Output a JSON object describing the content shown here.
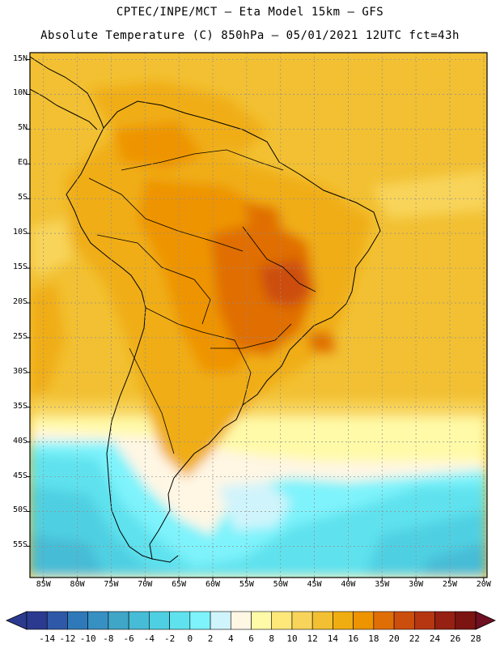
{
  "title": {
    "line1": "CPTEC/INPE/MCT —  Eta Model 15km — GFS",
    "line2": "Absolute Temperature (C) 850hPa — 05/01/2021 12UTC fct=43h"
  },
  "lat_labels": [
    "15N",
    "10N",
    "5N",
    "EQ",
    "5S",
    "10S",
    "15S",
    "20S",
    "25S",
    "30S",
    "35S",
    "40S",
    "45S",
    "50S",
    "55S"
  ],
  "lat_values": [
    15,
    10,
    5,
    0,
    -5,
    -10,
    -15,
    -20,
    -25,
    -30,
    -35,
    -40,
    -45,
    -50,
    -55
  ],
  "lon_labels": [
    "85W",
    "80W",
    "75W",
    "70W",
    "65W",
    "60W",
    "55W",
    "50W",
    "45W",
    "40W",
    "35W",
    "30W",
    "25W",
    "20W"
  ],
  "lon_values": [
    -85,
    -80,
    -75,
    -70,
    -65,
    -60,
    -55,
    -50,
    -45,
    -40,
    -35,
    -30,
    -25,
    -20
  ],
  "colorbar": {
    "labels": [
      "-14",
      "-12",
      "-10",
      "-8",
      "-6",
      "-4",
      "-2",
      "0",
      "2",
      "4",
      "6",
      "8",
      "10",
      "12",
      "14",
      "16",
      "18",
      "20",
      "22",
      "24",
      "26",
      "28"
    ],
    "colors": [
      "#2b3a8f",
      "#2f58a8",
      "#2f79b8",
      "#3790c2",
      "#3fa6c8",
      "#46bcd6",
      "#4fd0e2",
      "#5fe2ee",
      "#7ef3fb",
      "#d0f4fb",
      "#fff6e4",
      "#fffaa8",
      "#ffe87a",
      "#f8d45a",
      "#f2c032",
      "#f0ad12",
      "#ee9400",
      "#e06e06",
      "#cc4e0c",
      "#b63612",
      "#962012",
      "#7c1512"
    ]
  }
}
